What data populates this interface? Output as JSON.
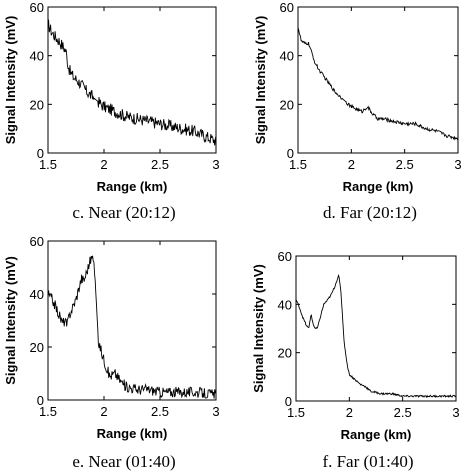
{
  "chart_data": [
    {
      "type": "line",
      "caption": "c. Near (20:12)",
      "xlabel": "Range (km)",
      "ylabel": "Signal Intensity (mV)",
      "xlim": [
        1.5,
        3
      ],
      "ylim": [
        0,
        60
      ],
      "xticks": [
        "1.5",
        "2",
        "2.5",
        "3"
      ],
      "yticks": [
        "0",
        "20",
        "40",
        "60"
      ],
      "noise": 2.5,
      "x": [
        1.5,
        1.53,
        1.56,
        1.6,
        1.63,
        1.66,
        1.68,
        1.7,
        1.73,
        1.76,
        1.8,
        1.85,
        1.9,
        1.95,
        2.0,
        2.05,
        2.1,
        2.15,
        2.2,
        2.3,
        2.4,
        2.5,
        2.6,
        2.7,
        2.8,
        2.9,
        3.0
      ],
      "y": [
        53,
        50,
        48,
        46,
        44,
        42,
        36,
        33,
        31,
        30,
        28,
        25,
        23,
        21,
        19,
        18,
        17,
        16,
        15,
        14,
        13,
        12,
        11,
        10,
        9,
        7,
        5
      ]
    },
    {
      "type": "line",
      "caption": "d. Far (20:12)",
      "xlabel": "Range (km)",
      "ylabel": "Signal Intensity (mV)",
      "xlim": [
        1.5,
        3
      ],
      "ylim": [
        0,
        60
      ],
      "xticks": [
        "1.5",
        "2",
        "2.5",
        "3"
      ],
      "yticks": [
        "0",
        "20",
        "40",
        "60"
      ],
      "noise": 0.7,
      "x": [
        1.5,
        1.53,
        1.56,
        1.6,
        1.63,
        1.66,
        1.7,
        1.75,
        1.8,
        1.85,
        1.9,
        1.95,
        2.0,
        2.05,
        2.1,
        2.15,
        2.2,
        2.25,
        2.3,
        2.4,
        2.5,
        2.6,
        2.7,
        2.8,
        2.9,
        3.0
      ],
      "y": [
        52,
        46,
        45,
        45,
        41,
        37,
        34,
        31,
        28,
        25,
        23,
        21,
        19,
        18,
        17,
        19,
        16,
        14,
        14,
        13,
        12,
        12,
        10,
        9,
        7,
        6
      ]
    },
    {
      "type": "line",
      "caption": "e. Near (01:40)",
      "xlabel": "Range (km)",
      "ylabel": "Signal Intensity (mV)",
      "xlim": [
        1.5,
        3
      ],
      "ylim": [
        0,
        60
      ],
      "xticks": [
        "1.5",
        "2",
        "2.5",
        "3"
      ],
      "yticks": [
        "0",
        "20",
        "40",
        "60"
      ],
      "noise": 2.0,
      "x": [
        1.5,
        1.55,
        1.6,
        1.63,
        1.65,
        1.67,
        1.69,
        1.72,
        1.75,
        1.78,
        1.8,
        1.82,
        1.85,
        1.88,
        1.9,
        1.92,
        1.95,
        2.0,
        2.05,
        2.1,
        2.15,
        2.2,
        2.3,
        2.4,
        2.5,
        2.6,
        2.8,
        3.0
      ],
      "y": [
        40,
        37,
        32,
        29,
        30,
        28,
        32,
        35,
        38,
        43,
        46,
        45,
        49,
        53,
        54,
        46,
        22,
        15,
        9,
        10,
        7,
        5,
        4,
        4,
        3,
        3,
        3,
        2
      ]
    },
    {
      "type": "line",
      "caption": "f. Far (01:40)",
      "xlabel": "Range (km)",
      "ylabel": "Signal Intensity (mV)",
      "xlim": [
        1.5,
        3
      ],
      "ylim": [
        0,
        60
      ],
      "xticks": [
        "1.5",
        "2",
        "2.5",
        "3"
      ],
      "yticks": [
        "0",
        "20",
        "40",
        "60"
      ],
      "noise": 0.4,
      "x": [
        1.5,
        1.53,
        1.56,
        1.6,
        1.62,
        1.64,
        1.66,
        1.68,
        1.7,
        1.73,
        1.76,
        1.8,
        1.83,
        1.86,
        1.9,
        1.92,
        1.95,
        1.98,
        2.0,
        2.05,
        2.1,
        2.15,
        2.2,
        2.3,
        2.4,
        2.5,
        2.6,
        2.8,
        3.0
      ],
      "y": [
        42,
        39,
        35,
        31,
        30,
        36,
        32,
        30,
        30,
        35,
        40,
        42,
        44,
        47,
        52,
        46,
        25,
        15,
        11,
        9,
        7,
        6,
        4,
        3,
        3,
        2,
        2,
        2,
        2
      ]
    }
  ]
}
